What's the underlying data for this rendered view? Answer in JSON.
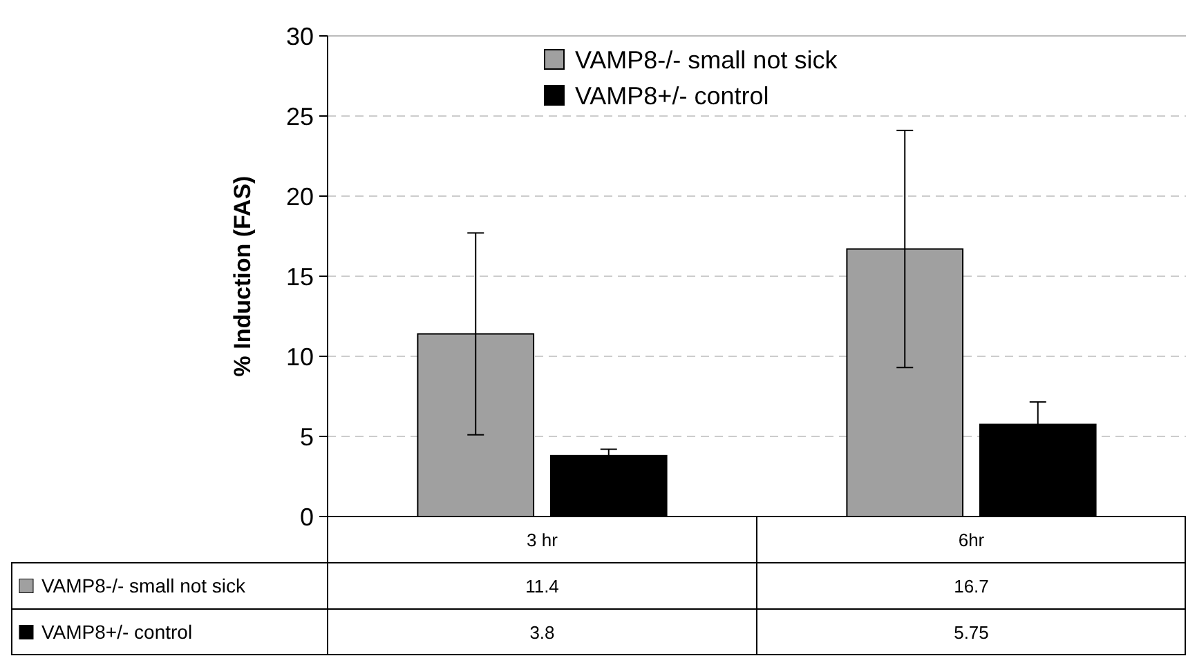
{
  "chart_data": {
    "type": "bar",
    "ylabel": "% Induction (FAS)",
    "categories": [
      "3 hr",
      "6hr"
    ],
    "series": [
      {
        "name": "VAMP8-/- small not sick",
        "color": "#a0a0a0",
        "values": [
          11.4,
          16.7
        ],
        "errors": [
          6.3,
          7.4
        ]
      },
      {
        "name": "VAMP8+/- control",
        "color": "#000000",
        "values": [
          3.8,
          5.75
        ],
        "errors": [
          0.4,
          1.4
        ]
      }
    ],
    "ylim": [
      0,
      30
    ],
    "yticks": [
      0,
      5,
      10,
      15,
      20,
      25,
      30
    ],
    "grid": "y",
    "legend": "top",
    "data_labels": true
  }
}
